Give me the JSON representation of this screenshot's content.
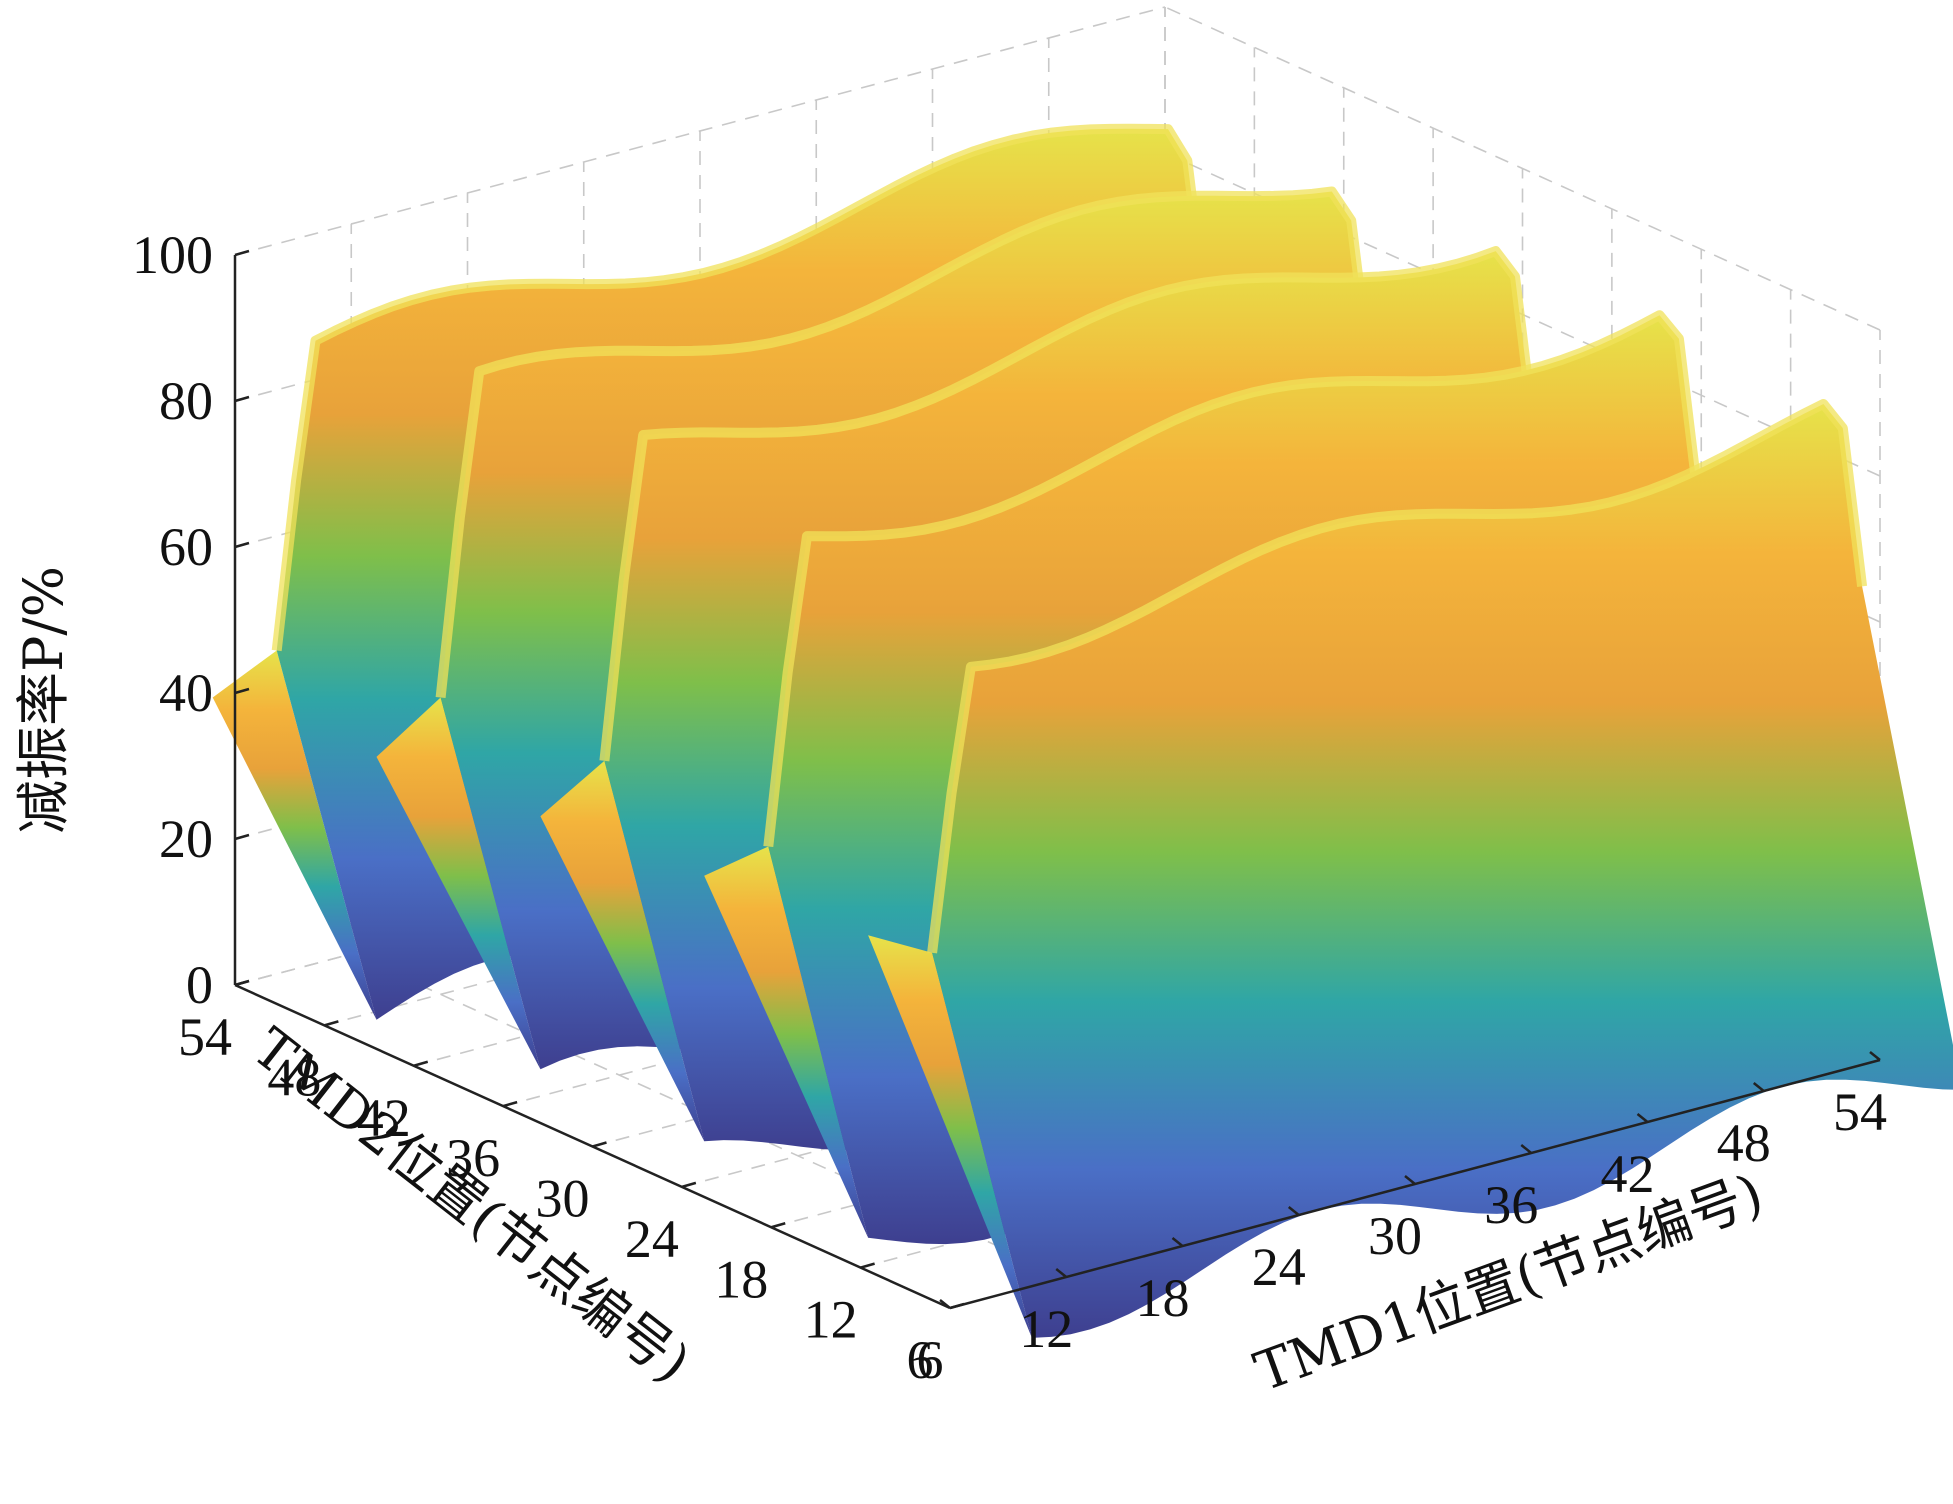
{
  "chart_data": {
    "type": "surface",
    "title": "",
    "xlabel": "TMD1位置(节点编号)",
    "ylabel": "TMD2位置(节点编号)",
    "zlabel": "减振率P/%",
    "x_ticks": [
      "6",
      "12",
      "18",
      "24",
      "30",
      "36",
      "42",
      "48",
      "54"
    ],
    "y_ticks": [
      "54",
      "48",
      "42",
      "36",
      "30",
      "24",
      "18",
      "12",
      "6"
    ],
    "z_ticks": [
      "0",
      "20",
      "40",
      "60",
      "80",
      "100"
    ],
    "xlim": [
      6,
      54
    ],
    "ylim": [
      6,
      54
    ],
    "zlim": [
      0,
      100
    ],
    "grid": true,
    "colormap": "parula",
    "surface_description": "Five parallel ridges along TMD1 axis; TMD1 nodes 6-54 with reduction ~40-95%, deep troughs near 0% between ridges along TMD2",
    "ridges": [
      {
        "tmd2_center": 50,
        "peak": 88,
        "min": 0
      },
      {
        "tmd2_center": 39,
        "peak": 92,
        "min": 0
      },
      {
        "tmd2_center": 28,
        "peak": 94,
        "min": 0
      },
      {
        "tmd2_center": 17,
        "peak": 93,
        "min": 0
      },
      {
        "tmd2_center": 6,
        "peak": 88,
        "min": 0
      }
    ]
  }
}
